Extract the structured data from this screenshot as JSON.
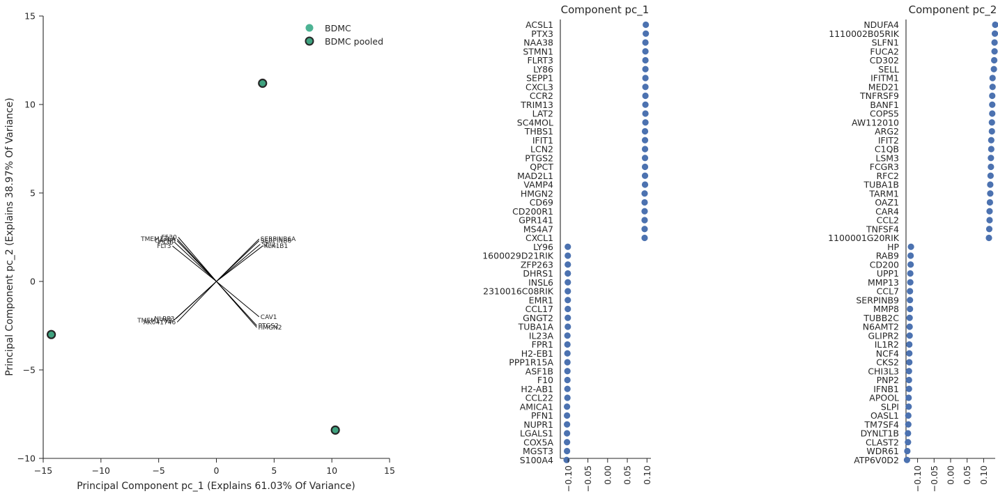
{
  "chart_data": [
    {
      "type": "scatter",
      "title": "",
      "xlabel": "Principal Component pc_1 (Explains 61.03% Of Variance)",
      "ylabel": "Principal Component pc_2 (Explains 38.97% Of Variance)",
      "xlim": [
        -15,
        15
      ],
      "ylim": [
        -10,
        15
      ],
      "xticks": [
        -15,
        -10,
        -5,
        0,
        5,
        10,
        15
      ],
      "yticks": [
        -10,
        -5,
        0,
        5,
        10,
        15
      ],
      "xtick_labels": [
        "−15",
        "−10",
        "−5",
        "0",
        "5",
        "10",
        "15"
      ],
      "ytick_labels": [
        "−10",
        "−5",
        "0",
        "5",
        "10",
        "15"
      ],
      "legend": [
        "BDMC",
        "BDMC pooled"
      ],
      "legend_position": "top-right",
      "colors": {
        "point": "#4db394",
        "pooled_face": "#3fa27f",
        "pooled_edge": "#262626",
        "loading": "#000000"
      },
      "points": [
        {
          "x": 4.0,
          "y": 11.2
        },
        {
          "x": -14.3,
          "y": -3.0
        },
        {
          "x": 10.3,
          "y": -8.4
        }
      ],
      "loadings": [
        {
          "x": -3.4,
          "y": 2.4,
          "label": "TMEM176A"
        },
        {
          "x": -3.4,
          "y": 2.3,
          "label": "CAPN5"
        },
        {
          "x": -3.6,
          "y": 2.2,
          "label": "F530"
        },
        {
          "x": -3.8,
          "y": 2.0,
          "label": "FLT3"
        },
        {
          "x": -3.3,
          "y": 2.5,
          "label": "F530"
        },
        {
          "x": 3.7,
          "y": 2.4,
          "label": "SERPINB6A"
        },
        {
          "x": 3.7,
          "y": 2.3,
          "label": "SERPINB6"
        },
        {
          "x": 3.8,
          "y": 2.1,
          "label": "SELL"
        },
        {
          "x": 4.0,
          "y": 2.0,
          "label": "KLK1B1"
        },
        {
          "x": -3.5,
          "y": -2.1,
          "label": "NLRP3"
        },
        {
          "x": -3.7,
          "y": -2.2,
          "label": "TMEM176B"
        },
        {
          "x": -3.4,
          "y": -2.3,
          "label": "AK041746"
        },
        {
          "x": 3.7,
          "y": -2.0,
          "label": "CAV1"
        },
        {
          "x": 3.5,
          "y": -2.5,
          "label": "PTGS2"
        },
        {
          "x": 3.5,
          "y": -2.6,
          "label": "HMGN2"
        }
      ]
    },
    {
      "type": "scatter",
      "title": "Component pc_1",
      "xlim": [
        -0.12,
        0.11
      ],
      "xticks": [
        -0.1,
        -0.05,
        0.0,
        0.05,
        0.1
      ],
      "xtick_labels": [
        "−0.10",
        "−0.05",
        "0.00",
        "0.05",
        "0.10"
      ],
      "color": "#4c72b0",
      "genes": [
        "ACSL1",
        "PTX3",
        "NAA38",
        "STMN1",
        "FLRT3",
        "LY86",
        "SEPP1",
        "CXCL3",
        "CCR2",
        "TRIM13",
        "LAT2",
        "SC4MOL",
        "THBS1",
        "IFIT1",
        "LCN2",
        "PTGS2",
        "QPCT",
        "MAD2L1",
        "VAMP4",
        "HMGN2",
        "CD69",
        "CD200R1",
        "GPR141",
        "MS4A7",
        "CXCL1",
        "LY96",
        "1600029D21RIK",
        "ZFP263",
        "DHRS1",
        "INSL6",
        "2310016C08RIK",
        "EMR1",
        "CCL17",
        "GNGT2",
        "TUBA1A",
        "IL23A",
        "FPR1",
        "H2-EB1",
        "PPP1R15A",
        "ASF1B",
        "F10",
        "H2-AB1",
        "CCL22",
        "AMICA1",
        "PFN1",
        "NUPR1",
        "LGALS1",
        "COX5A",
        "MGST3",
        "S100A4"
      ],
      "values": [
        0.097,
        0.097,
        0.096,
        0.096,
        0.096,
        0.096,
        0.096,
        0.096,
        0.096,
        0.096,
        0.096,
        0.096,
        0.095,
        0.095,
        0.095,
        0.095,
        0.095,
        0.095,
        0.095,
        0.094,
        0.094,
        0.094,
        0.094,
        0.094,
        0.094,
        -0.101,
        -0.101,
        -0.101,
        -0.101,
        -0.101,
        -0.101,
        -0.101,
        -0.101,
        -0.101,
        -0.101,
        -0.102,
        -0.102,
        -0.102,
        -0.102,
        -0.102,
        -0.102,
        -0.102,
        -0.102,
        -0.103,
        -0.103,
        -0.103,
        -0.103,
        -0.103,
        -0.103,
        -0.104
      ]
    },
    {
      "type": "scatter",
      "title": "Component pc_2",
      "xlim": [
        -0.135,
        0.135
      ],
      "xticks": [
        -0.1,
        -0.05,
        0.0,
        0.05,
        0.1
      ],
      "xtick_labels": [
        "−0.10",
        "−0.05",
        "0.00",
        "0.05",
        "0.10"
      ],
      "color": "#4c72b0",
      "genes": [
        "NDUFA4",
        "1110002B05RIK",
        "SLFN1",
        "FUCA2",
        "CD302",
        "SELL",
        "IFITM1",
        "MED21",
        "TNFRSF9",
        "BANF1",
        "COPS5",
        "AW112010",
        "ARG2",
        "IFIT2",
        "C1QB",
        "LSM3",
        "FCGR3",
        "RFC2",
        "TUBA1B",
        "TARM1",
        "OAZ1",
        "CAR4",
        "CCL2",
        "TNFSF4",
        "1100001G20RIK",
        "HP",
        "RAB9",
        "CD200",
        "UPP1",
        "MMP13",
        "CCL7",
        "SERPINB9",
        "MMP8",
        "TUBB2C",
        "N6AMT2",
        "GLIPR2",
        "IL1R2",
        "NCF4",
        "CKS2",
        "CHI3L3",
        "PNP2",
        "IFNB1",
        "APOOL",
        "SLPI",
        "OASL1",
        "TM7SF4",
        "DYNLT1B",
        "CLAST2",
        "WDR61",
        "ATP6V0D2"
      ],
      "values": [
        0.135,
        0.134,
        0.133,
        0.133,
        0.132,
        0.131,
        0.127,
        0.127,
        0.126,
        0.126,
        0.126,
        0.125,
        0.125,
        0.123,
        0.123,
        0.122,
        0.122,
        0.121,
        0.12,
        0.12,
        0.119,
        0.118,
        0.118,
        0.117,
        0.116,
        -0.12,
        -0.121,
        -0.121,
        -0.122,
        -0.122,
        -0.123,
        -0.123,
        -0.123,
        -0.124,
        -0.124,
        -0.124,
        -0.125,
        -0.125,
        -0.125,
        -0.126,
        -0.126,
        -0.126,
        -0.127,
        -0.127,
        -0.128,
        -0.128,
        -0.129,
        -0.129,
        -0.131,
        -0.132
      ]
    }
  ]
}
